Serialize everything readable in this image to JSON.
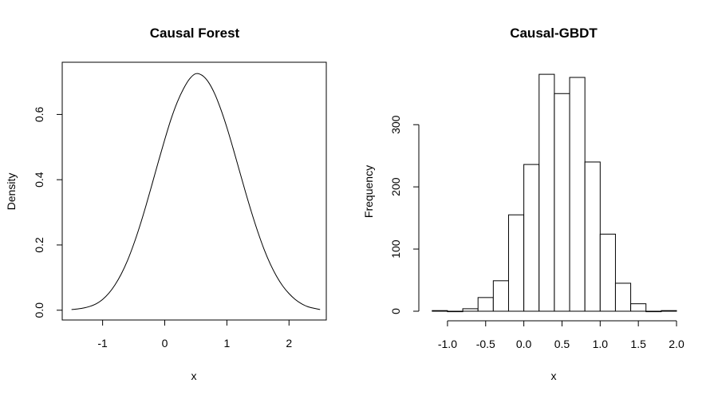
{
  "chart_data": [
    {
      "type": "line",
      "title": "Causal Forest",
      "xlabel": "x",
      "ylabel": "Density",
      "xlim": [
        -1.65,
        2.6
      ],
      "ylim": [
        -0.03,
        0.76
      ],
      "x_ticks": [
        -1,
        0,
        1,
        2
      ],
      "y_ticks": [
        0.0,
        0.2,
        0.4,
        0.6
      ],
      "x_tick_labels": [
        "-1",
        "0",
        "1",
        "2"
      ],
      "y_tick_labels": [
        "0.0",
        "0.2",
        "0.4",
        "0.6"
      ],
      "frame": true,
      "grid": false,
      "x": [
        -1.5,
        -1.4,
        -1.3,
        -1.2,
        -1.1,
        -1.0,
        -0.9,
        -0.8,
        -0.7,
        -0.6,
        -0.5,
        -0.4,
        -0.3,
        -0.2,
        -0.1,
        0.0,
        0.1,
        0.2,
        0.3,
        0.4,
        0.5,
        0.6,
        0.7,
        0.8,
        0.9,
        1.0,
        1.1,
        1.2,
        1.3,
        1.4,
        1.5,
        1.6,
        1.7,
        1.8,
        1.9,
        2.0,
        2.1,
        2.2,
        2.3,
        2.4,
        2.5
      ],
      "y": [
        0.002,
        0.004,
        0.007,
        0.012,
        0.02,
        0.033,
        0.052,
        0.078,
        0.111,
        0.152,
        0.202,
        0.259,
        0.322,
        0.389,
        0.457,
        0.523,
        0.585,
        0.637,
        0.678,
        0.709,
        0.725,
        0.72,
        0.7,
        0.665,
        0.617,
        0.56,
        0.496,
        0.429,
        0.362,
        0.298,
        0.239,
        0.186,
        0.141,
        0.104,
        0.074,
        0.051,
        0.033,
        0.02,
        0.011,
        0.006,
        0.002
      ]
    },
    {
      "type": "bar",
      "title": "Causal-GBDT",
      "xlabel": "x",
      "ylabel": "Frequency",
      "xlim": [
        -1.25,
        2.0
      ],
      "ylim": [
        0,
        385
      ],
      "x_ticks": [
        -1.0,
        -0.5,
        0.0,
        0.5,
        1.0,
        1.5,
        2.0
      ],
      "y_ticks": [
        0,
        100,
        200,
        300
      ],
      "x_tick_labels": [
        "-1.0",
        "-0.5",
        "0.0",
        "0.5",
        "1.0",
        "1.5",
        "2.0"
      ],
      "y_tick_labels": [
        "0",
        "100",
        "200",
        "300"
      ],
      "frame": false,
      "grid": false,
      "bin_edges": [
        -1.2,
        -1.0,
        -0.8,
        -0.6,
        -0.4,
        -0.2,
        0.0,
        0.2,
        0.4,
        0.6,
        0.8,
        1.0,
        1.2,
        1.4,
        1.6,
        1.8,
        2.0
      ],
      "values": [
        1,
        0,
        4,
        22,
        49,
        155,
        236,
        381,
        350,
        376,
        240,
        124,
        45,
        12,
        0,
        1
      ]
    }
  ]
}
